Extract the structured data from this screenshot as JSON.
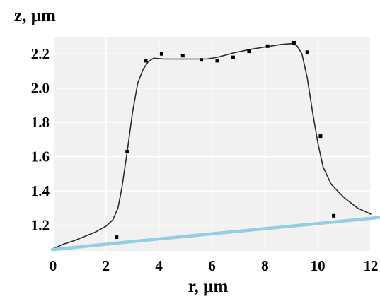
{
  "chart_data": {
    "type": "line",
    "title": "",
    "xlabel": "r, µm",
    "ylabel": "z, µm",
    "xlim": [
      0,
      12
    ],
    "ylim": [
      1.05,
      2.3
    ],
    "xticks": [
      0,
      2,
      4,
      6,
      8,
      10,
      12
    ],
    "xtick_labels": [
      "0",
      "2",
      "4",
      "6",
      "8",
      "10",
      "12"
    ],
    "yticks": [
      1.2,
      1.4,
      1.6,
      1.8,
      2.0,
      2.2
    ],
    "ytick_labels": [
      "1.2",
      "1.4",
      "1.6",
      "1.8",
      "2.0",
      "2.2"
    ],
    "grid": true,
    "background": "#f1f1f1",
    "grid_color": "#ffffff",
    "legend": "none",
    "series": [
      {
        "kind": "line",
        "color": "#2b2b2b",
        "x": [
          -0.05,
          0.4,
          0.8,
          1.2,
          1.6,
          2.0,
          2.25,
          2.45,
          2.6,
          2.8,
          3.0,
          3.2,
          3.4,
          3.6,
          3.8,
          4.2,
          5.0,
          5.8,
          6.2,
          6.8,
          7.4,
          8.0,
          8.6,
          9.0,
          9.2,
          9.4,
          9.6,
          9.8,
          10.0,
          10.2,
          10.5,
          11.0,
          11.5,
          12.0
        ],
        "y": [
          1.06,
          1.09,
          1.11,
          1.135,
          1.16,
          1.195,
          1.23,
          1.3,
          1.42,
          1.63,
          1.86,
          2.03,
          2.11,
          2.155,
          2.175,
          2.17,
          2.17,
          2.17,
          2.18,
          2.205,
          2.225,
          2.24,
          2.255,
          2.26,
          2.25,
          2.2,
          2.06,
          1.86,
          1.68,
          1.54,
          1.44,
          1.36,
          1.3,
          1.265
        ]
      },
      {
        "kind": "scatter",
        "color": "#000000",
        "x": [
          2.4,
          2.8,
          3.5,
          4.1,
          4.9,
          5.6,
          6.2,
          6.8,
          7.4,
          8.1,
          9.1,
          9.6,
          10.1,
          10.6
        ],
        "y": [
          1.13,
          1.63,
          2.16,
          2.2,
          2.19,
          2.165,
          2.16,
          2.18,
          2.215,
          2.245,
          2.265,
          2.21,
          1.72,
          1.255
        ]
      },
      {
        "kind": "line",
        "color": "#92cfe5",
        "x": [
          0.0,
          2.0,
          4.0,
          6.0,
          8.0,
          10.0,
          12.3
        ],
        "y": [
          1.058,
          1.089,
          1.12,
          1.15,
          1.18,
          1.21,
          1.245
        ]
      }
    ]
  }
}
